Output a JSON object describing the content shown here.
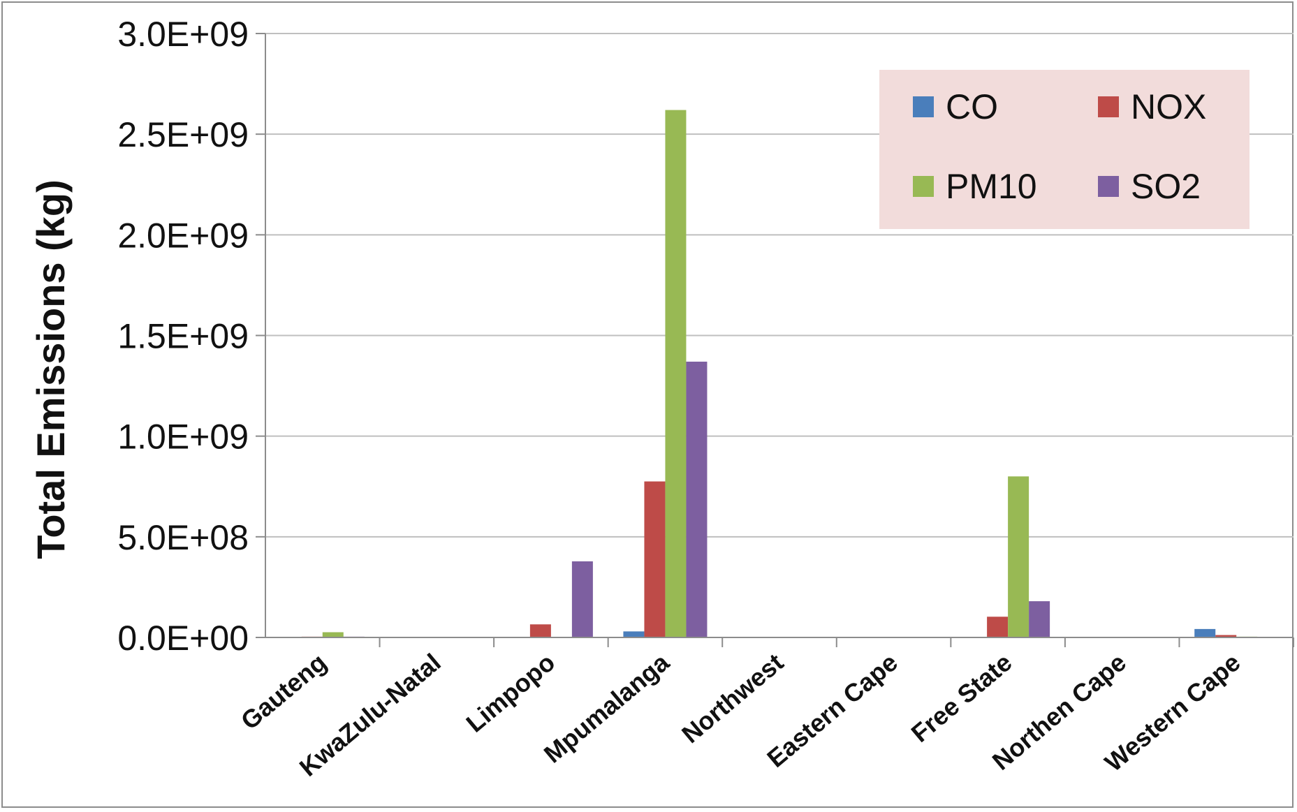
{
  "chart_data": {
    "type": "bar",
    "ylabel": "Total Emissions (kg)",
    "xlabel": "",
    "title": "",
    "ylim": [
      0,
      3000000000
    ],
    "y_ticks": [
      0,
      500000000,
      1000000000,
      1500000000,
      2000000000,
      2500000000,
      3000000000
    ],
    "y_tick_labels": [
      "0.0E+00",
      "5.0E+08",
      "1.0E+09",
      "1.5E+09",
      "2.0E+09",
      "2.5E+09",
      "3.0E+09"
    ],
    "grid": true,
    "legend_position": "top-right",
    "categories": [
      "Gauteng",
      "KwaZulu-Natal",
      "Limpopo",
      "Mpumalanga",
      "Northwest",
      "Eastern Cape",
      "Free State",
      "Northen Cape",
      "Western Cape"
    ],
    "series": [
      {
        "name": "CO",
        "color": "#4a7ebb",
        "values": [
          3000000,
          1000000,
          3000000,
          30000000,
          0,
          1000000,
          3000000,
          0,
          42000000
        ]
      },
      {
        "name": "NOX",
        "color": "#be4b48",
        "values": [
          4000000,
          2000000,
          65000000,
          775000000,
          0,
          2000000,
          103000000,
          0,
          12000000
        ]
      },
      {
        "name": "PM10",
        "color": "#98b954",
        "values": [
          26000000,
          2000000,
          2000000,
          2620000000,
          3000000,
          1000000,
          800000000,
          3000000,
          4000000
        ]
      },
      {
        "name": "SO2",
        "color": "#7d5fa0",
        "values": [
          4000000,
          2000000,
          378000000,
          1370000000,
          2000000,
          2000000,
          180000000,
          1000000,
          3000000
        ]
      }
    ]
  }
}
